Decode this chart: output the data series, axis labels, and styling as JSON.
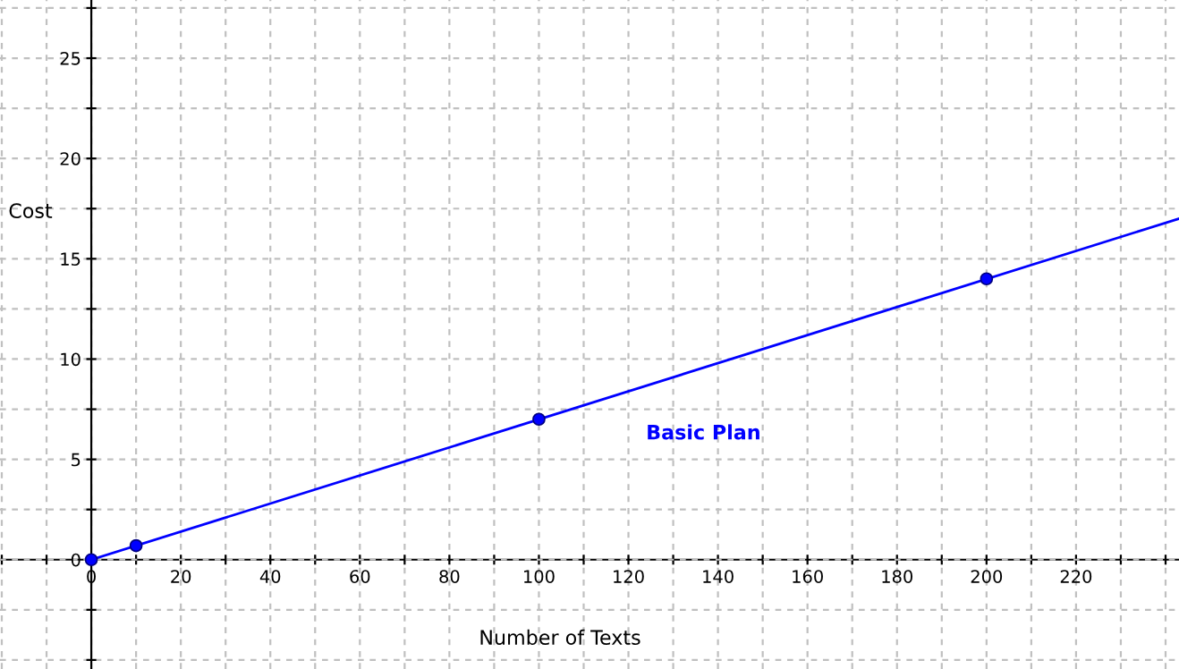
{
  "chart_data": {
    "type": "line",
    "xlabel": "Number of Texts",
    "ylabel": "Cost",
    "xlim": [
      -20.4,
      243
    ],
    "ylim": [
      -5.45,
      27.9
    ],
    "xticks": [
      {
        "value": -20,
        "label": null
      },
      {
        "value": -10,
        "label": null
      },
      0,
      {
        "value": 10,
        "label": null
      },
      20,
      {
        "value": 30,
        "label": null
      },
      40,
      {
        "value": 50,
        "label": null
      },
      60,
      {
        "value": 70,
        "label": null
      },
      80,
      {
        "value": 90,
        "label": null
      },
      100,
      {
        "value": 110,
        "label": null
      },
      120,
      {
        "value": 130,
        "label": null
      },
      140,
      {
        "value": 150,
        "label": null
      },
      160,
      {
        "value": 170,
        "label": null
      },
      180,
      {
        "value": 190,
        "label": null
      },
      200,
      {
        "value": 210,
        "label": null
      },
      220,
      {
        "value": 230,
        "label": null
      },
      {
        "value": 240,
        "label": null
      }
    ],
    "yticks": [
      {
        "value": -5,
        "label": null
      },
      {
        "value": -2.5,
        "label": null
      },
      0,
      {
        "value": 2.5,
        "label": null
      },
      5,
      {
        "value": 7.5,
        "label": null
      },
      10,
      {
        "value": 12.5,
        "label": null
      },
      15,
      {
        "value": 17.5,
        "label": null
      },
      20,
      {
        "value": 22.5,
        "label": null
      },
      25,
      {
        "value": 27.5,
        "label": null
      }
    ],
    "grid": true,
    "line_style": "solid",
    "series": [
      {
        "name": "Basic Plan",
        "color": "#0000ff",
        "marker": "none",
        "x": [
          0,
          243
        ],
        "values": [
          0,
          17
        ]
      },
      {
        "color": "#0000ff",
        "type": "scatter",
        "marker": "circle",
        "x": [
          0,
          10,
          100,
          200
        ],
        "values": [
          0,
          0.7,
          7,
          14
        ]
      }
    ]
  }
}
